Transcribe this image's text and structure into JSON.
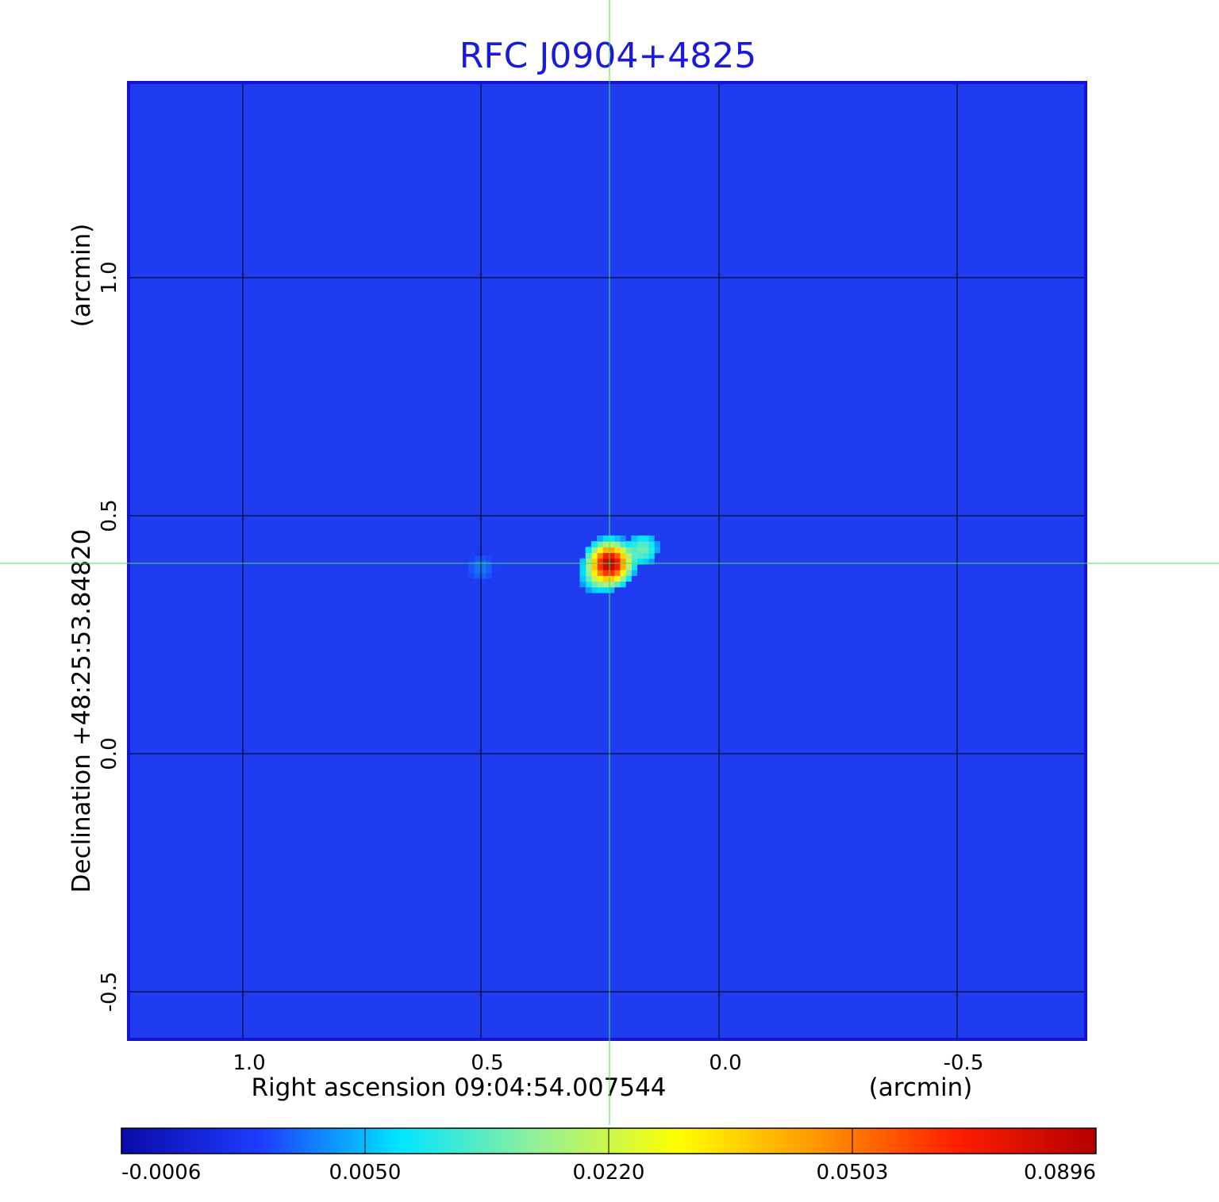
{
  "chart_data": {
    "type": "heatmap",
    "title": "RFC J0904+4825",
    "title_color": "#1a1adc",
    "xlabel": "Right ascension  09:04:54.007544",
    "xunit": "(arcmin)",
    "ylabel": "Declination  +48:25:53.84820",
    "yunit": "(arcmin)",
    "x_axis": {
      "reversed": true,
      "range": [
        1.24,
        -0.77
      ],
      "ticks": [
        1.0,
        0.5,
        0.0,
        -0.5
      ],
      "tick_labels": [
        "1.0",
        "0.5",
        "0.0",
        "-0.5"
      ]
    },
    "y_axis": {
      "range": [
        -0.6,
        1.41
      ],
      "ticks": [
        1.0,
        0.5,
        0.0,
        -0.5
      ],
      "tick_labels": [
        "1.0",
        "0.5",
        "0.0",
        "-0.5"
      ]
    },
    "grid": true,
    "grid_color": "#000000",
    "frame_color": "#1414d2",
    "background_color": "#1f3cf0",
    "crosshair": {
      "x": 0.23,
      "y": 0.4,
      "color": "#4ce04c"
    },
    "source": {
      "x": 0.23,
      "y": 0.4,
      "peak": 0.0896,
      "components": [
        {
          "dx": 0.0,
          "dy": 0.0,
          "sigma": 0.022,
          "amp": 0.0896
        },
        {
          "dx": -0.07,
          "dy": 0.03,
          "sigma": 0.02,
          "amp": 0.011
        },
        {
          "dx": 0.03,
          "dy": -0.03,
          "sigma": 0.02,
          "amp": 0.008
        },
        {
          "dx": 0.27,
          "dy": -0.01,
          "sigma": 0.02,
          "amp": 0.0035
        }
      ]
    },
    "colorbar": {
      "orientation": "horizontal",
      "tick_labels": [
        "-0.0006",
        "0.0050",
        "0.0220",
        "0.0503",
        "0.0896"
      ],
      "colors": [
        "#0a0aa8",
        "#1e3cff",
        "#00e6ff",
        "#96f096",
        "#ffff00",
        "#ff9600",
        "#ff1e00",
        "#b40000"
      ]
    }
  }
}
